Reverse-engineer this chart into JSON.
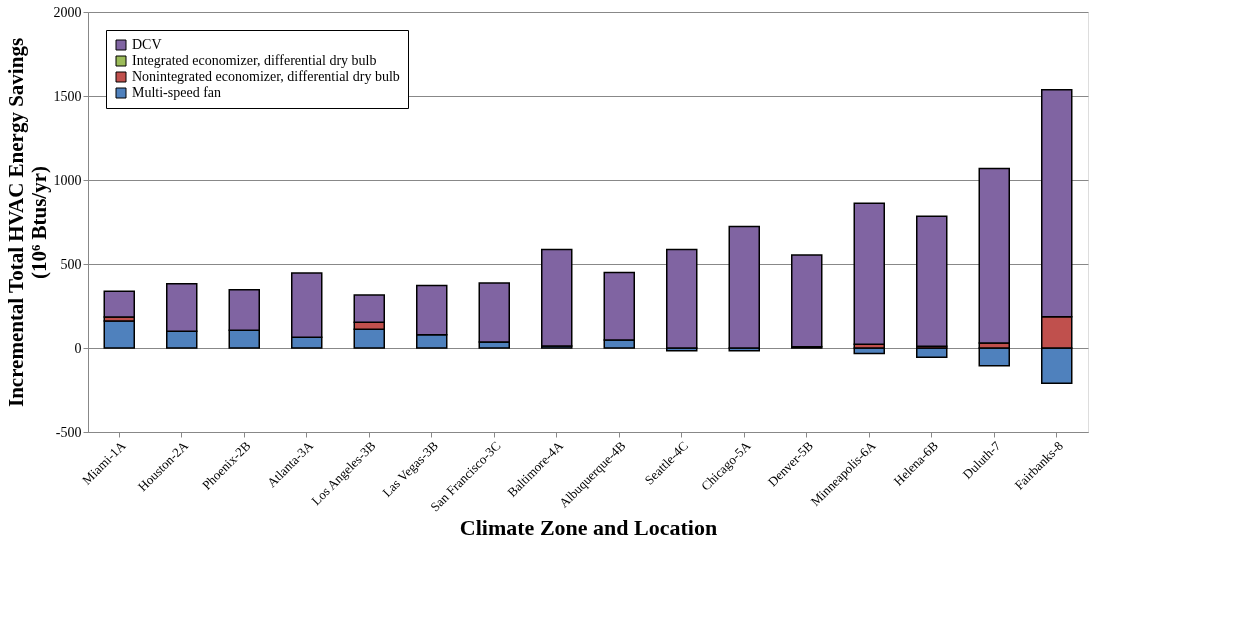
{
  "chart_data": {
    "type": "bar",
    "stacked": true,
    "xlabel": "Climate Zone and Location",
    "ylabel": "Incremental Total HVAC Energy Savings\n(10⁶ Btus/yr)",
    "categories": [
      "Miami-1A",
      "Houston-2A",
      "Phoenix-2B",
      "Atlanta-3A",
      "Los Angeles-3B",
      "Las Vegas-3B",
      "San Francisco-3C",
      "Baltimore-4A",
      "Albuquerque-4B",
      "Seattle-4C",
      "Chicago-5A",
      "Denver-5B",
      "Minneapolis-6A",
      "Helena-6B",
      "Duluth-7",
      "Fairbanks-8"
    ],
    "series": [
      {
        "name": "Multi-speed fan",
        "color": "#4f81bd",
        "values": [
          160,
          100,
          106,
          64,
          111,
          79,
          36,
          12,
          48,
          -17,
          -17,
          8,
          -32,
          -55,
          -106,
          -210
        ]
      },
      {
        "name": "Nonintegrated economizer, differential dry bulb",
        "color": "#c0504d",
        "values": [
          25,
          0,
          0,
          0,
          42,
          0,
          0,
          0,
          0,
          0,
          0,
          0,
          22,
          10,
          30,
          186
        ]
      },
      {
        "name": "Integrated economizer, differential dry bulb",
        "color": "#9bbb59",
        "values": [
          0,
          0,
          0,
          0,
          0,
          0,
          0,
          0,
          0,
          0,
          0,
          0,
          0,
          0,
          0,
          0
        ]
      },
      {
        "name": "DCV",
        "color": "#8064a2",
        "values": [
          153,
          282,
          241,
          382,
          162,
          293,
          351,
          575,
          402,
          587,
          723,
          546,
          839,
          774,
          1039,
          1351
        ]
      }
    ],
    "ylim": [
      -500,
      2000
    ],
    "yticks": [
      -500,
      0,
      500,
      1000,
      1500,
      2000
    ],
    "grid": "y",
    "legend": "top left"
  }
}
